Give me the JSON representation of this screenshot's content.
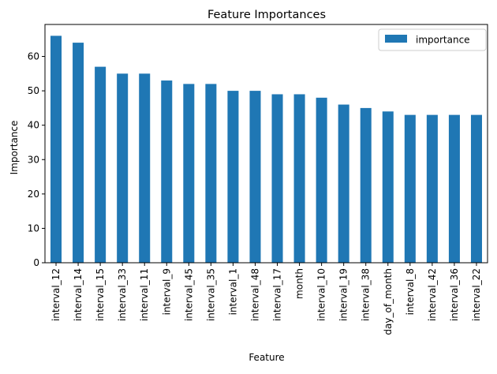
{
  "chart_data": {
    "type": "bar",
    "title": "Feature Importances",
    "xlabel": "Feature",
    "ylabel": "Importance",
    "categories": [
      "interval_12",
      "interval_14",
      "interval_15",
      "interval_33",
      "interval_11",
      "interval_9",
      "interval_45",
      "interval_35",
      "interval_1",
      "interval_48",
      "interval_17",
      "month",
      "interval_10",
      "interval_19",
      "interval_38",
      "day_of_month",
      "interval_8",
      "interval_42",
      "interval_36",
      "interval_22"
    ],
    "series": [
      {
        "name": "importance",
        "values": [
          66,
          64,
          57,
          55,
          55,
          53,
          52,
          52,
          50,
          50,
          49,
          49,
          48,
          46,
          45,
          44,
          43,
          43,
          43,
          43
        ]
      }
    ],
    "ylim": [
      0,
      69.3
    ],
    "yticks": [
      0,
      10,
      20,
      30,
      40,
      50,
      60
    ],
    "grid": false,
    "legend": "top-right",
    "bar_color": "#1f77b4"
  }
}
